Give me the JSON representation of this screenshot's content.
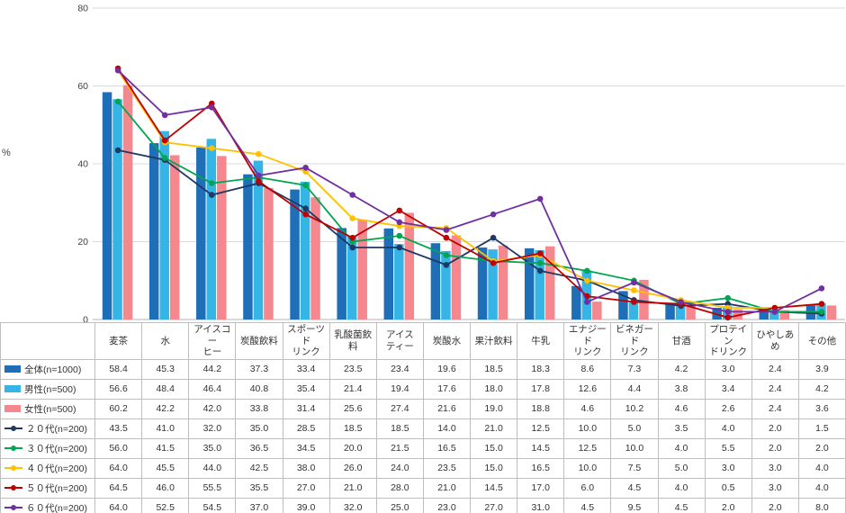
{
  "chart_data": {
    "type": "bar+line",
    "ylabel": "%",
    "ylim": [
      0,
      80
    ],
    "yticks": [
      0,
      20,
      40,
      60,
      80
    ],
    "grid": true,
    "legend_position": "table-left-column",
    "categories": [
      "麦茶",
      "水",
      "アイスコー\nヒー",
      "炭酸飲料",
      "スポーツド\nリンク",
      "乳酸菌飲料",
      "アイス\nティー",
      "炭酸水",
      "果汁飲料",
      "牛乳",
      "エナジード\nリンク",
      "ビネガード\nリンク",
      "甘酒",
      "プロテイン\nドリンク",
      "ひやしあめ",
      "その他"
    ],
    "bar_series": [
      {
        "name": "全体(n=1000)",
        "color": "#1e6fb8",
        "values": [
          58.4,
          45.3,
          44.2,
          37.3,
          33.4,
          23.5,
          23.4,
          19.6,
          18.5,
          18.3,
          8.6,
          7.3,
          4.2,
          3.0,
          2.4,
          3.9
        ]
      },
      {
        "name": "男性(n=500)",
        "color": "#36b4e5",
        "values": [
          56.6,
          48.4,
          46.4,
          40.8,
          35.4,
          21.4,
          19.4,
          17.6,
          18.0,
          17.8,
          12.6,
          4.4,
          3.8,
          3.4,
          2.4,
          4.2
        ]
      },
      {
        "name": "女性(n=500)",
        "color": "#f5878f",
        "values": [
          60.2,
          42.2,
          42.0,
          33.8,
          31.4,
          25.6,
          27.4,
          21.6,
          19.0,
          18.8,
          4.6,
          10.2,
          4.6,
          2.6,
          2.4,
          3.6
        ]
      }
    ],
    "line_series": [
      {
        "name": "２０代(n=200)",
        "color": "#1f3864",
        "values": [
          43.5,
          41.0,
          32.0,
          35.0,
          28.5,
          18.5,
          18.5,
          14.0,
          21.0,
          12.5,
          10.0,
          5.0,
          3.5,
          4.0,
          2.0,
          1.5
        ]
      },
      {
        "name": "３０代(n=200)",
        "color": "#00a651",
        "values": [
          56.0,
          41.5,
          35.0,
          36.5,
          34.5,
          20.0,
          21.5,
          16.5,
          15.0,
          14.5,
          12.5,
          10.0,
          4.0,
          5.5,
          2.0,
          2.0
        ]
      },
      {
        "name": "４０代(n=200)",
        "color": "#ffc000",
        "values": [
          64.0,
          45.5,
          44.0,
          42.5,
          38.0,
          26.0,
          24.0,
          23.5,
          15.0,
          16.5,
          10.0,
          7.5,
          5.0,
          3.0,
          3.0,
          4.0
        ]
      },
      {
        "name": "５０代(n=200)",
        "color": "#c00000",
        "values": [
          64.5,
          46.0,
          55.5,
          35.5,
          27.0,
          21.0,
          28.0,
          21.0,
          14.5,
          17.0,
          6.0,
          4.5,
          4.0,
          0.5,
          3.0,
          4.0
        ]
      },
      {
        "name": "６０代(n=200)",
        "color": "#7030a0",
        "values": [
          64.0,
          52.5,
          54.5,
          37.0,
          39.0,
          32.0,
          25.0,
          23.0,
          27.0,
          31.0,
          4.5,
          9.5,
          4.5,
          2.0,
          2.0,
          8.0
        ]
      }
    ]
  }
}
